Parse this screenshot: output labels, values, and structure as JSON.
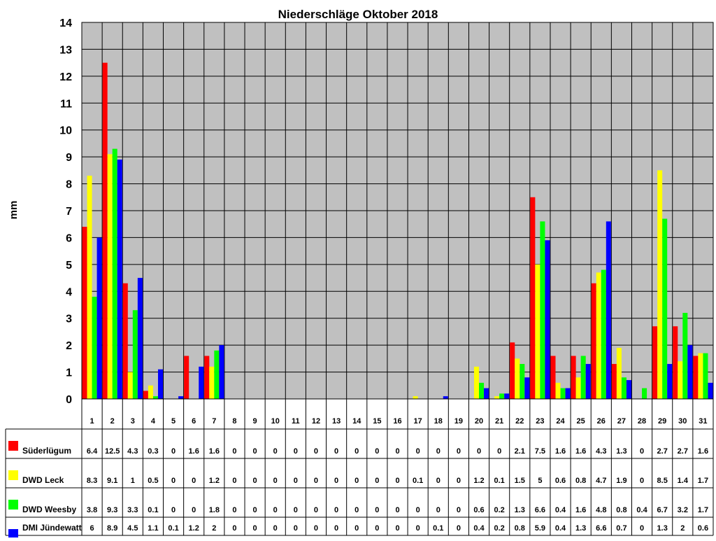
{
  "chart_data": {
    "type": "bar",
    "title": "Niederschläge Oktober 2018",
    "xlabel": "",
    "ylabel": "mm",
    "ylim": [
      0,
      14
    ],
    "yticks": [
      0,
      1,
      2,
      3,
      4,
      5,
      6,
      7,
      8,
      9,
      10,
      11,
      12,
      13,
      14
    ],
    "grid": true,
    "legend": "data-table-left",
    "plot_background": "#c0c0c0",
    "categories": [
      "1",
      "2",
      "3",
      "4",
      "5",
      "6",
      "7",
      "8",
      "9",
      "10",
      "11",
      "12",
      "13",
      "14",
      "15",
      "16",
      "17",
      "18",
      "19",
      "20",
      "21",
      "22",
      "23",
      "24",
      "25",
      "26",
      "27",
      "28",
      "29",
      "30",
      "31"
    ],
    "series": [
      {
        "name": "Süderlügum",
        "color": "#ff0000",
        "values": [
          6.4,
          12.5,
          4.3,
          0.3,
          0,
          1.6,
          1.6,
          0,
          0,
          0,
          0,
          0,
          0,
          0,
          0,
          0,
          0,
          0,
          0,
          0,
          0,
          2.1,
          7.5,
          1.6,
          1.6,
          4.3,
          1.3,
          0,
          2.7,
          2.7,
          1.6
        ]
      },
      {
        "name": "DWD Leck",
        "color": "#ffff00",
        "values": [
          8.3,
          9.1,
          1,
          0.5,
          0,
          0,
          1.2,
          0,
          0,
          0,
          0,
          0,
          0,
          0,
          0,
          0,
          0.1,
          0,
          0,
          1.2,
          0.1,
          1.5,
          5,
          0.6,
          0.8,
          4.7,
          1.9,
          0,
          8.5,
          1.4,
          1.7
        ]
      },
      {
        "name": "DWD Weesby",
        "color": "#00ff00",
        "values": [
          3.8,
          9.3,
          3.3,
          0.1,
          0,
          0,
          1.8,
          0,
          0,
          0,
          0,
          0,
          0,
          0,
          0,
          0,
          0,
          0,
          0,
          0.6,
          0.2,
          1.3,
          6.6,
          0.4,
          1.6,
          4.8,
          0.8,
          0.4,
          6.7,
          3.2,
          1.7
        ]
      },
      {
        "name": "DMI Jündewatt",
        "color": "#0000ff",
        "values": [
          6,
          8.9,
          4.5,
          1.1,
          0.1,
          1.2,
          2,
          0,
          0,
          0,
          0,
          0,
          0,
          0,
          0,
          0,
          0,
          0.1,
          0,
          0.4,
          0.2,
          0.8,
          5.9,
          0.4,
          1.3,
          6.6,
          0.7,
          0,
          1.3,
          2,
          0.6
        ]
      }
    ]
  }
}
